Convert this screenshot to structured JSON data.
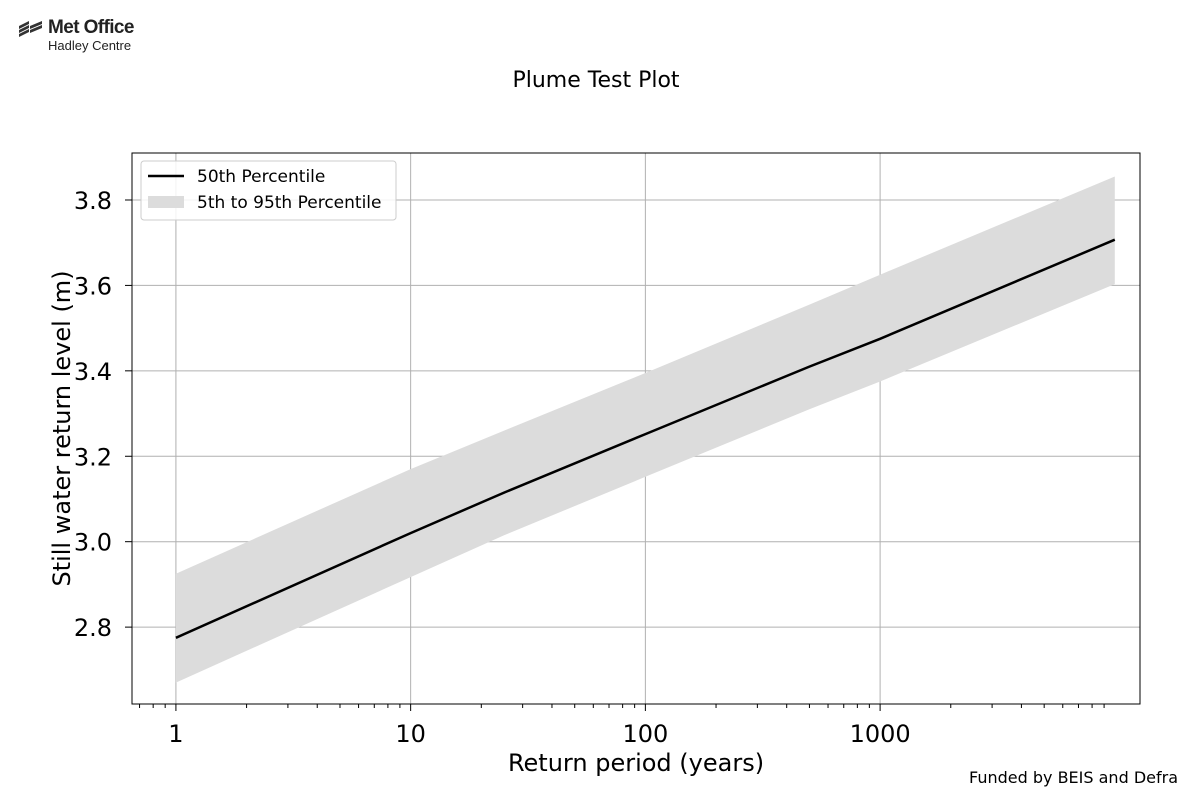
{
  "logo": {
    "name": "Met Office",
    "subname": "Hadley Centre"
  },
  "footer": {
    "funding_note": "Funded by BEIS and Defra"
  },
  "chart_data": {
    "type": "line",
    "title": "Plume Test Plot",
    "xlabel": "Return period (years)",
    "ylabel": "Still water return level (m)",
    "xscale": "log",
    "xlim": [
      0.65,
      12800
    ],
    "ylim": [
      2.62,
      3.91
    ],
    "xticks": [
      1,
      10,
      100,
      1000
    ],
    "xtick_labels": [
      "1",
      "10",
      "100",
      "1000"
    ],
    "yticks": [
      2.8,
      3.0,
      3.2,
      3.4,
      3.6,
      3.8
    ],
    "ytick_labels": [
      "2.8",
      "3.0",
      "3.2",
      "3.4",
      "3.6",
      "3.8"
    ],
    "grid": true,
    "legend_position": "top-left",
    "x": [
      1,
      10,
      25,
      100,
      500,
      1000,
      10000
    ],
    "series": [
      {
        "name": "50th Percentile",
        "kind": "line",
        "color": "#000000",
        "values": [
          2.775,
          3.02,
          3.115,
          3.252,
          3.41,
          3.475,
          3.707
        ]
      },
      {
        "name": "5th to 95th Percentile",
        "kind": "band",
        "color": "#dcdcdc",
        "lower": [
          2.67,
          2.917,
          3.015,
          3.152,
          3.31,
          3.375,
          3.603
        ],
        "upper": [
          2.925,
          3.17,
          3.26,
          3.395,
          3.555,
          3.625,
          3.855
        ]
      }
    ]
  }
}
